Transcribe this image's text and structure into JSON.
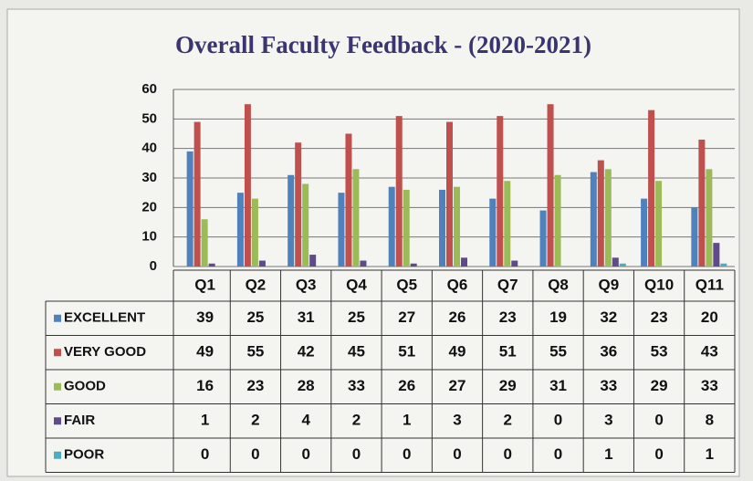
{
  "chart_data": {
    "type": "bar",
    "title": "Overall Faculty Feedback - (2020-2021)",
    "categories": [
      "Q1",
      "Q2",
      "Q3",
      "Q4",
      "Q5",
      "Q6",
      "Q7",
      "Q8",
      "Q9",
      "Q10",
      "Q11"
    ],
    "series": [
      {
        "name": "EXCELLENT",
        "color": "#4f81bd",
        "values": [
          39,
          25,
          31,
          25,
          27,
          26,
          23,
          19,
          32,
          23,
          20
        ]
      },
      {
        "name": "VERY GOOD",
        "color": "#c0504d",
        "values": [
          49,
          55,
          42,
          45,
          51,
          49,
          51,
          55,
          36,
          53,
          43
        ]
      },
      {
        "name": "GOOD",
        "color": "#9bbb59",
        "values": [
          16,
          23,
          28,
          33,
          26,
          27,
          29,
          31,
          33,
          29,
          33
        ]
      },
      {
        "name": "FAIR",
        "color": "#5f4b8b",
        "values": [
          1,
          2,
          4,
          2,
          1,
          3,
          2,
          0,
          3,
          0,
          8
        ]
      },
      {
        "name": "POOR",
        "color": "#4bacc6",
        "values": [
          0,
          0,
          0,
          0,
          0,
          0,
          0,
          0,
          1,
          0,
          1
        ]
      }
    ],
    "ylim": [
      0,
      60
    ],
    "yticks": [
      0,
      10,
      20,
      30,
      40,
      50,
      60
    ],
    "grid": true
  }
}
